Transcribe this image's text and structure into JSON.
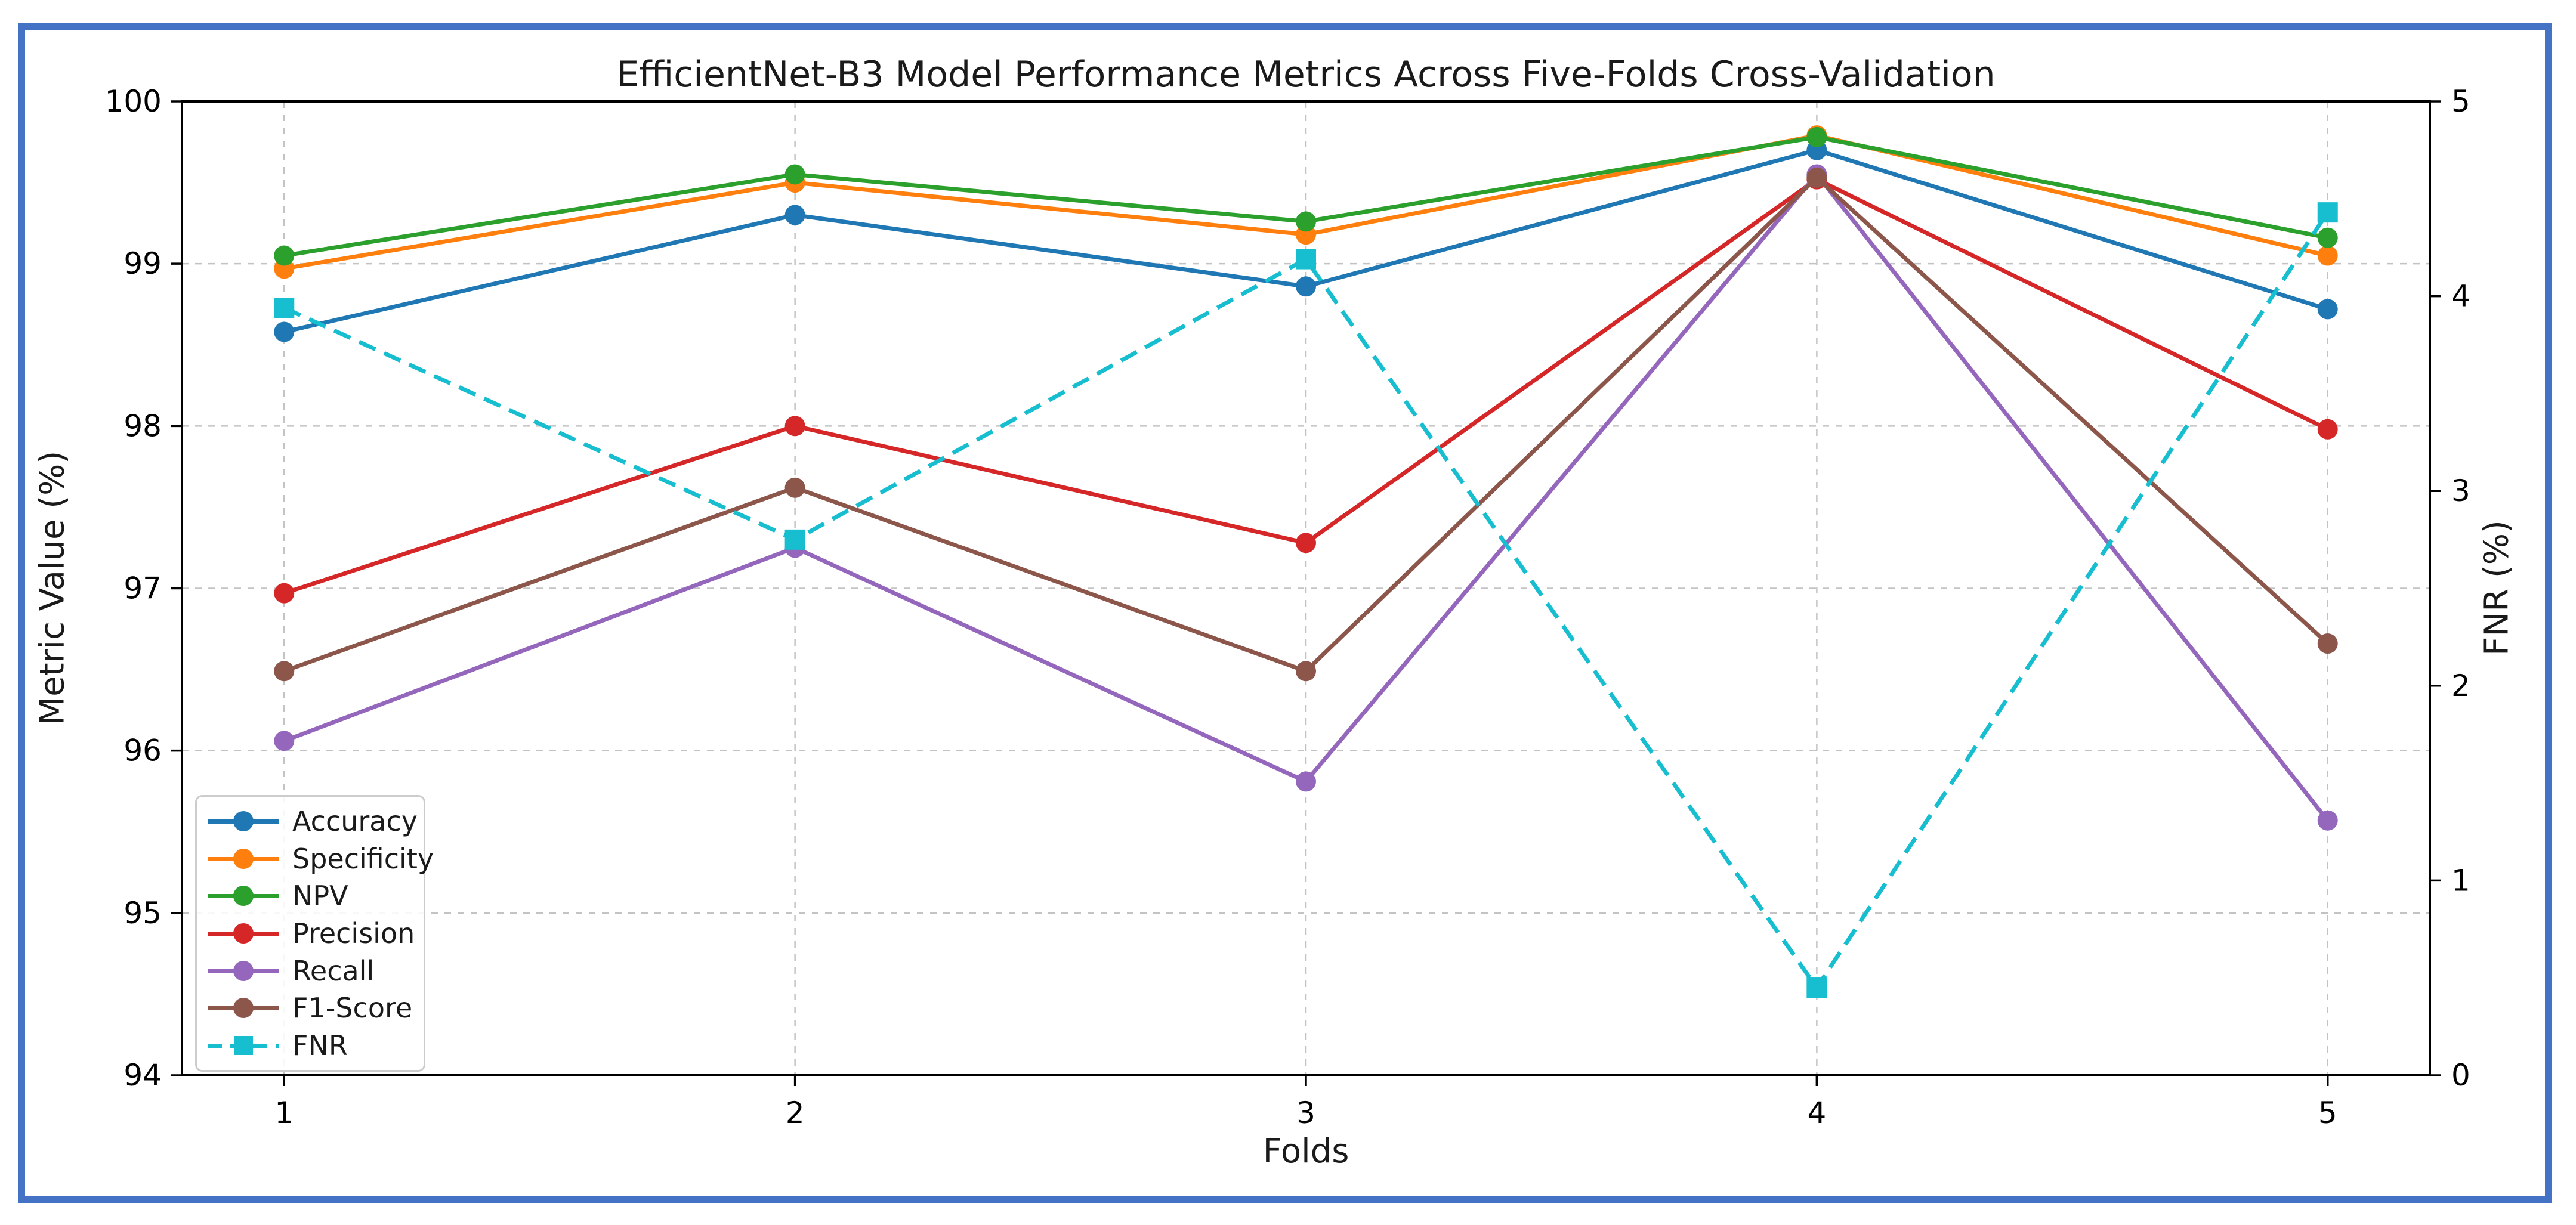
{
  "colors": {
    "frame_border": "#4472C4",
    "grid": "#c3c3c3",
    "spine": "#000000",
    "text": "#1a1a1a"
  },
  "chart_data": {
    "type": "line",
    "title": "EfficientNet-B3 Model Performance Metrics Across Five-Folds Cross-Validation",
    "xlabel": "Folds",
    "ylabel_left": "Metric Value (%)",
    "ylabel_right": "FNR (%)",
    "x": [
      1,
      2,
      3,
      4,
      5
    ],
    "x_tick_labels": [
      "1",
      "2",
      "3",
      "4",
      "5"
    ],
    "y_left_ticks": [
      94,
      95,
      96,
      97,
      98,
      99,
      100
    ],
    "y_right_ticks": [
      0,
      1,
      2,
      3,
      4,
      5
    ],
    "xlim": [
      0.8,
      5.2
    ],
    "ylim_left": [
      94,
      100
    ],
    "ylim_right": [
      0,
      5
    ],
    "grid": true,
    "legend_position": "lower-left",
    "series": [
      {
        "name": "Accuracy",
        "color": "#1f77b4",
        "axis": "left",
        "marker": "circle",
        "linestyle": "solid",
        "values": [
          98.58,
          99.3,
          98.86,
          99.7,
          98.72
        ]
      },
      {
        "name": "Specificity",
        "color": "#ff7f0e",
        "axis": "left",
        "marker": "circle",
        "linestyle": "solid",
        "values": [
          98.97,
          99.5,
          99.18,
          99.79,
          99.05
        ]
      },
      {
        "name": "NPV",
        "color": "#2ca02c",
        "axis": "left",
        "marker": "circle",
        "linestyle": "solid",
        "values": [
          99.05,
          99.55,
          99.26,
          99.78,
          99.16
        ]
      },
      {
        "name": "Precision",
        "color": "#d62728",
        "axis": "left",
        "marker": "circle",
        "linestyle": "solid",
        "values": [
          96.97,
          98.0,
          97.28,
          99.52,
          97.98
        ]
      },
      {
        "name": "Recall",
        "color": "#9467bd",
        "axis": "left",
        "marker": "circle",
        "linestyle": "solid",
        "values": [
          96.06,
          97.25,
          95.81,
          99.55,
          95.57
        ]
      },
      {
        "name": "F1-Score",
        "color": "#8c564b",
        "axis": "left",
        "marker": "circle",
        "linestyle": "solid",
        "values": [
          96.49,
          97.62,
          96.49,
          99.53,
          96.66
        ]
      },
      {
        "name": "FNR",
        "color": "#17becf",
        "axis": "right",
        "marker": "square",
        "linestyle": "dashed",
        "values": [
          3.94,
          2.75,
          4.19,
          0.45,
          4.43
        ]
      }
    ]
  }
}
